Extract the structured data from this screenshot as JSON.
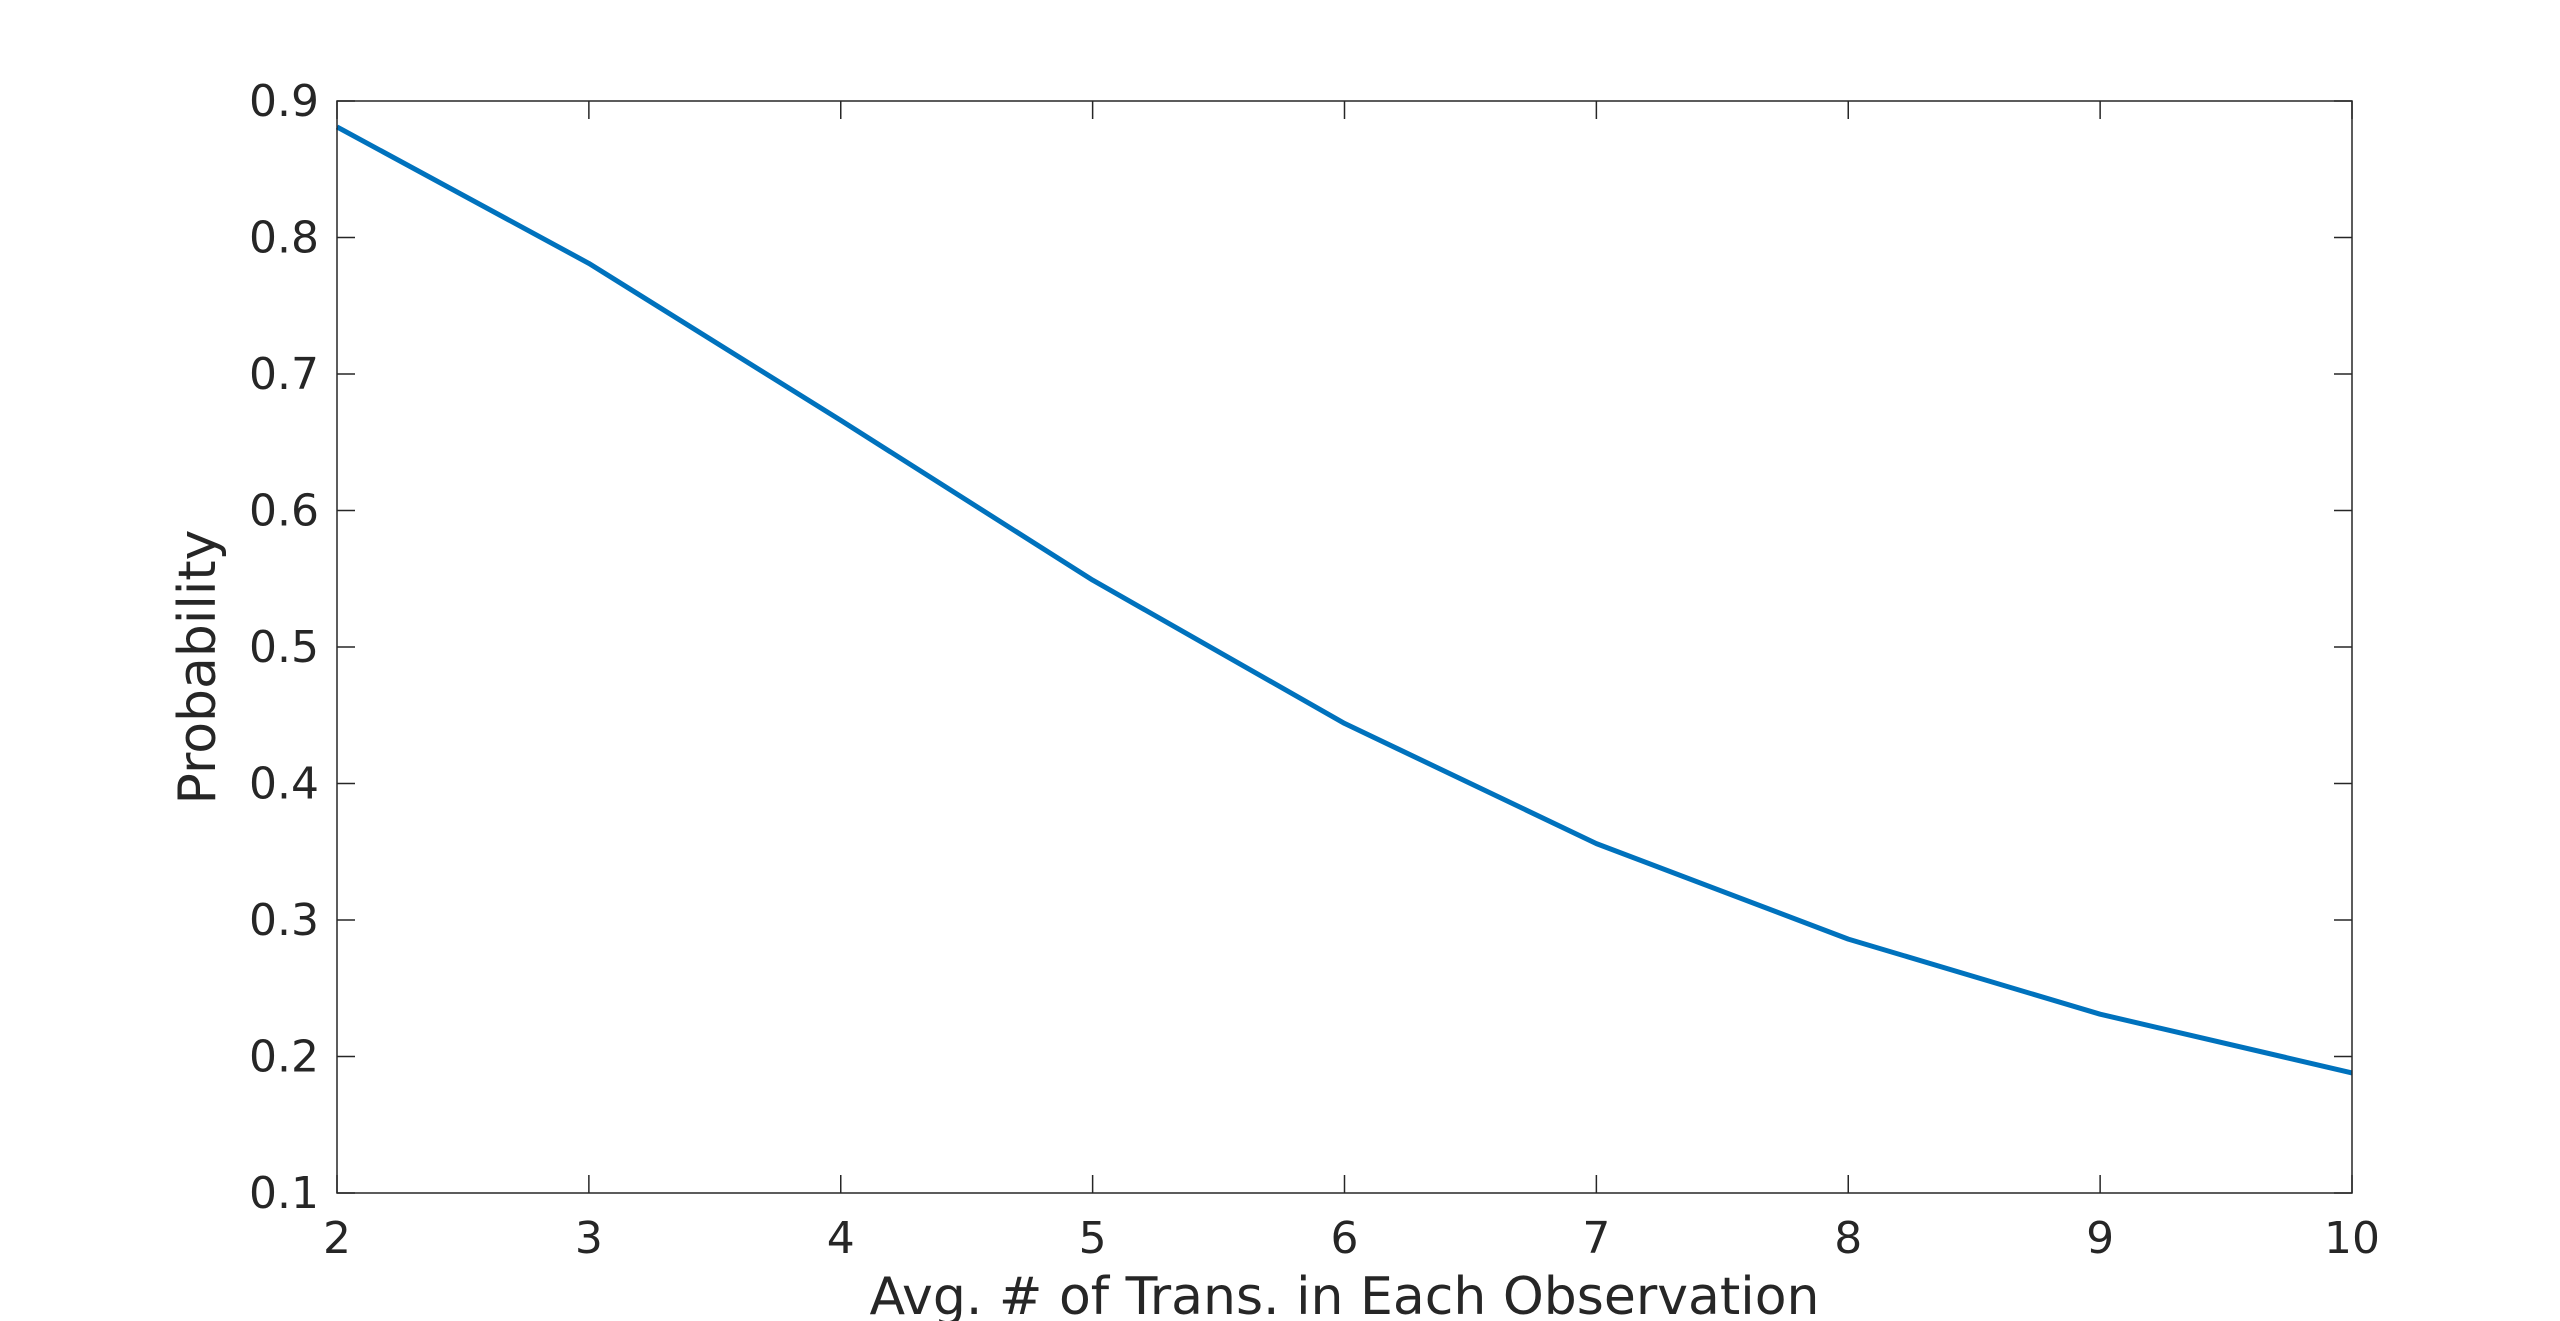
{
  "chart_data": {
    "type": "line",
    "title": "",
    "xlabel": "Avg. # of Trans. in Each Observation",
    "ylabel": "Probability",
    "xlim": [
      2,
      10
    ],
    "ylim": [
      0.1,
      0.9
    ],
    "x_ticks": [
      "2",
      "3",
      "4",
      "5",
      "6",
      "7",
      "8",
      "9",
      "10"
    ],
    "y_ticks": [
      "0.1",
      "0.2",
      "0.3",
      "0.4",
      "0.5",
      "0.6",
      "0.7",
      "0.8",
      "0.9"
    ],
    "grid": false,
    "legend": "none",
    "series": [
      {
        "color": "#0072BD",
        "x": [
          2,
          3,
          4,
          5,
          6,
          7,
          8,
          9,
          10
        ],
        "y": [
          0.881,
          0.781,
          0.666,
          0.549,
          0.444,
          0.356,
          0.286,
          0.231,
          0.188
        ]
      }
    ]
  }
}
